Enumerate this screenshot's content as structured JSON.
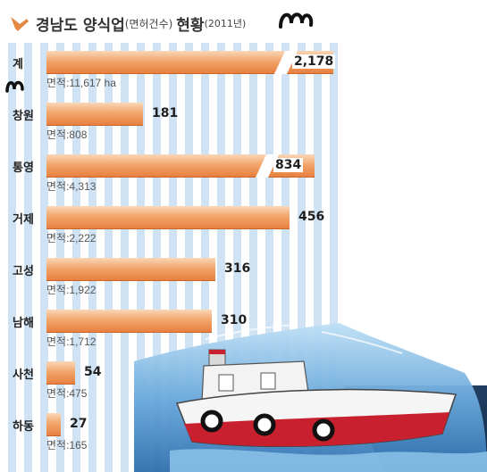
{
  "title": {
    "main": "경남도 양식업",
    "unit": "(면허건수)",
    "suffix": "현황",
    "year": "(2011년)"
  },
  "chart_data": {
    "type": "bar",
    "orientation": "horizontal",
    "title": "경남도 양식업(면허건수) 현황(2011년)",
    "categories": [
      "계",
      "창원",
      "통영",
      "거제",
      "고성",
      "남해",
      "사천",
      "하동"
    ],
    "values": [
      2178,
      181,
      834,
      456,
      316,
      310,
      54,
      27
    ],
    "value_labels": [
      "2,178",
      "181",
      "834",
      "456",
      "316",
      "310",
      "54",
      "27"
    ],
    "area_labels": [
      "면적:11,617 ha",
      "면적:808",
      "면적:4,313",
      "면적:2,222",
      "면적:1,922",
      "면적:1,712",
      "면적:475",
      "면적:165"
    ],
    "broken_bars": [
      "계",
      "통영"
    ],
    "colors": {
      "bar": "#ef9a5d",
      "bar_dark": "#e77d3d",
      "stripe": "#cfe3f4",
      "ship_hull": "#c8202e",
      "sea": "#4c8dc7"
    }
  }
}
